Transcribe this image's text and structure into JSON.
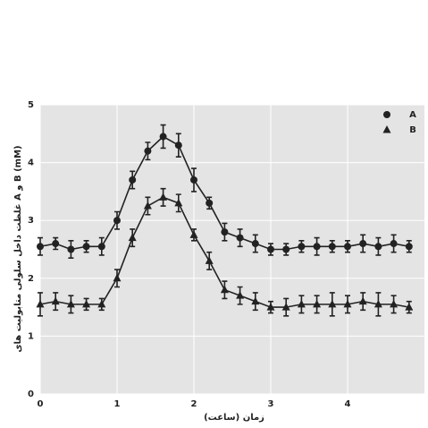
{
  "chart_data": {
    "type": "line",
    "x_label": "زمان (ساعت)",
    "y_label": "غلظت داخل سلولی متابولیت های A و B (mM)",
    "x": [
      0,
      0.2,
      0.4,
      0.6,
      0.8,
      1.0,
      1.2,
      1.4,
      1.6,
      1.8,
      2.0,
      2.2,
      2.4,
      2.6,
      2.8,
      3.0,
      3.2,
      3.4,
      3.6,
      3.8,
      4.0,
      4.2,
      4.4,
      4.6,
      4.8
    ],
    "series": [
      {
        "name": "A",
        "marker": "circle",
        "color": "#222222",
        "values": [
          2.55,
          2.6,
          2.5,
          2.55,
          2.55,
          3.0,
          3.7,
          4.2,
          4.45,
          4.3,
          3.7,
          3.3,
          2.8,
          2.7,
          2.6,
          2.5,
          2.5,
          2.55,
          2.55,
          2.55,
          2.55,
          2.6,
          2.55,
          2.6,
          2.55
        ],
        "errors": [
          0.15,
          0.1,
          0.15,
          0.1,
          0.15,
          0.15,
          0.15,
          0.15,
          0.2,
          0.2,
          0.2,
          0.1,
          0.15,
          0.15,
          0.15,
          0.1,
          0.1,
          0.1,
          0.15,
          0.1,
          0.1,
          0.15,
          0.15,
          0.15,
          0.1
        ]
      },
      {
        "name": "B",
        "marker": "triangle",
        "color": "#222222",
        "values": [
          1.55,
          1.6,
          1.55,
          1.55,
          1.55,
          2.0,
          2.7,
          3.25,
          3.4,
          3.3,
          2.75,
          2.3,
          1.8,
          1.7,
          1.6,
          1.5,
          1.5,
          1.55,
          1.55,
          1.55,
          1.55,
          1.6,
          1.55,
          1.55,
          1.5
        ],
        "errors": [
          0.2,
          0.15,
          0.15,
          0.1,
          0.1,
          0.15,
          0.15,
          0.15,
          0.15,
          0.15,
          0.1,
          0.15,
          0.15,
          0.15,
          0.15,
          0.1,
          0.15,
          0.15,
          0.15,
          0.2,
          0.15,
          0.15,
          0.2,
          0.15,
          0.1
        ]
      }
    ],
    "xlim": [
      0,
      5
    ],
    "xticks": [
      0,
      1,
      2,
      3,
      4
    ],
    "ylim": [
      0,
      5
    ],
    "yticks": [
      0,
      1,
      2,
      3,
      4,
      5
    ],
    "grid": true,
    "legend": "upper right"
  }
}
